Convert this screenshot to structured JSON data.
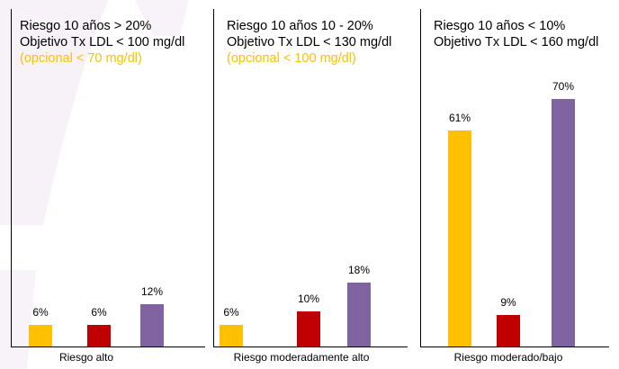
{
  "colors": {
    "option_1": "#FFC000",
    "option_2": "#C00000",
    "option_3": "#8064A2",
    "optional_text": "#FFC000"
  },
  "panels": [
    {
      "line1": "Riesgo 10 años > 20%",
      "line2": "Objetivo Tx LDL < 100 mg/dl",
      "line3": "(opcional < 70 mg/dl)",
      "category": "Riesgo alto"
    },
    {
      "line1": "Riesgo 10 años 10 - 20%",
      "line2": "Objetivo Tx LDL < 130 mg/dl",
      "line3": "(opcional < 100 mg/dl)",
      "category": "Riesgo moderadamente alto"
    },
    {
      "line1": "Riesgo 10 años < 10%",
      "line2": "Objetivo Tx LDL < 160 mg/dl",
      "line3": "",
      "category": "Riesgo moderado/bajo"
    }
  ],
  "chart_data": [
    {
      "type": "bar",
      "title": "Riesgo 10 años > 20%",
      "categories": [
        "Riesgo alto"
      ],
      "series": [
        {
          "values": [
            6
          ]
        },
        {
          "values": [
            6
          ]
        },
        {
          "values": [
            12
          ]
        }
      ],
      "labels": [
        "6%",
        "6%",
        "12%"
      ],
      "ylim": [
        0,
        80
      ]
    },
    {
      "type": "bar",
      "title": "Riesgo 10 años 10 - 20%",
      "categories": [
        "Riesgo moderadamente alto"
      ],
      "series": [
        {
          "values": [
            6
          ]
        },
        {
          "values": [
            10
          ]
        },
        {
          "values": [
            18
          ]
        }
      ],
      "labels": [
        "6%",
        "10%",
        "18%"
      ],
      "ylim": [
        0,
        80
      ]
    },
    {
      "type": "bar",
      "title": "Riesgo 10 años < 10%",
      "categories": [
        "Riesgo moderado/bajo"
      ],
      "series": [
        {
          "values": [
            61
          ]
        },
        {
          "values": [
            9
          ]
        },
        {
          "values": [
            70
          ]
        }
      ],
      "labels": [
        "61%",
        "9%",
        "70%"
      ],
      "ylim": [
        0,
        80
      ]
    }
  ]
}
